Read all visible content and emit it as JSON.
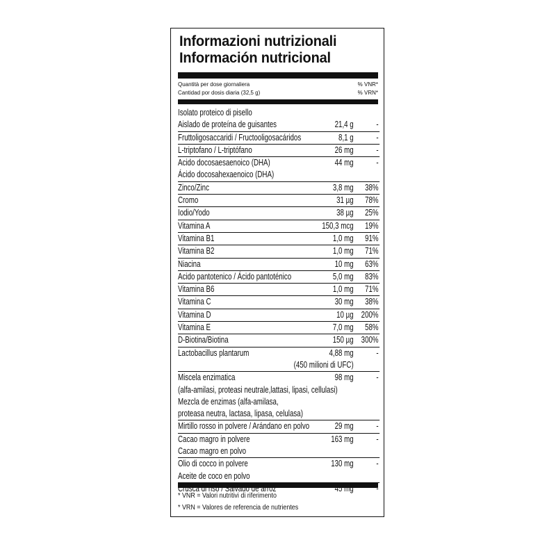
{
  "title_it": "Informazioni nutrizionali",
  "title_es": "Información nutricional",
  "header": {
    "qty_it": "Quantità per dose giornaliera",
    "qty_es": "Cantidad por dosis diaria (32,5 g)",
    "vnr": "% VNR*",
    "vrn": "% VRN*"
  },
  "rows": [
    [
      [
        "Isolato proteico di pisello",
        "",
        ""
      ],
      [
        "Aislado de proteína de guisantes",
        "21,4 g",
        "-"
      ]
    ],
    [
      [
        "Fruttoligosaccaridi / Fructooligosacáridos",
        "8,1 g",
        "-"
      ]
    ],
    [
      [
        "L-triptofano / L-triptófano",
        "26 mg",
        "-"
      ]
    ],
    [
      [
        "Acido docosaesaenoico (DHA)",
        "44 mg",
        "-"
      ],
      [
        "Ácido docosahexaenoico (DHA)",
        "",
        ""
      ]
    ],
    [
      [
        "Zinco/Zinc",
        "3,8 mg",
        "38%"
      ]
    ],
    [
      [
        "Cromo",
        "31 µg",
        "78%"
      ]
    ],
    [
      [
        "Iodio/Yodo",
        "38 µg",
        "25%"
      ]
    ],
    [
      [
        "Vitamina A",
        "150,3 mcg",
        "19%"
      ]
    ],
    [
      [
        "Vitamina B1",
        "1,0 mg",
        "91%"
      ]
    ],
    [
      [
        "Vitamina B2",
        "1,0 mg",
        "71%"
      ]
    ],
    [
      [
        "Niacina",
        "10 mg",
        "63%"
      ]
    ],
    [
      [
        "Acido pantotenico / Ácido pantoténico",
        "5,0 mg",
        "83%"
      ]
    ],
    [
      [
        "Vitamina B6",
        "1,0 mg",
        "71%"
      ]
    ],
    [
      [
        "Vitamina C",
        "30 mg",
        "38%"
      ]
    ],
    [
      [
        "Vitamina D",
        "10 µg",
        "200%"
      ]
    ],
    [
      [
        "Vitamina E",
        "7,0 mg",
        "58%"
      ]
    ],
    [
      [
        "D-Biotina/Biotina",
        "150 µg",
        "300%"
      ]
    ],
    [
      [
        "Lactobacillus plantarum",
        "4,88 mg",
        "-"
      ],
      [
        "",
        "(450 milioni di UFC)",
        ""
      ]
    ],
    [
      [
        "Miscela enzimatica",
        "98 mg",
        "-"
      ],
      [
        "(alfa-amilasi, proteasi neutrale,lattasi, lipasi, cellulasi)",
        "",
        ""
      ],
      [
        "Mezcla de enzimas (alfa-amilasa,",
        "",
        ""
      ],
      [
        "proteasa neutra, lactasa, lipasa, celulasa)",
        "",
        ""
      ]
    ],
    [
      [
        "Mirtillo rosso in polvere / Arándano en polvo",
        "29 mg",
        "-"
      ]
    ],
    [
      [
        "Cacao magro in polvere",
        "163 mg",
        "-"
      ],
      [
        "Cacao magro en polvo",
        "",
        ""
      ]
    ],
    [
      [
        "Olio di cocco in polvere",
        "130 mg",
        "-"
      ],
      [
        "Aceite de coco en polvo",
        "",
        ""
      ]
    ],
    [
      [
        "Crusca di riso / Salvado de arroz",
        "45 mg",
        "-"
      ],
      [
        "",
        "",
        ""
      ]
    ]
  ],
  "footnotes": {
    "vnr": "* VNR = Valori nutritivi di riferimento",
    "vrn": "* VRN = Valores de referencia de nutrientes"
  }
}
